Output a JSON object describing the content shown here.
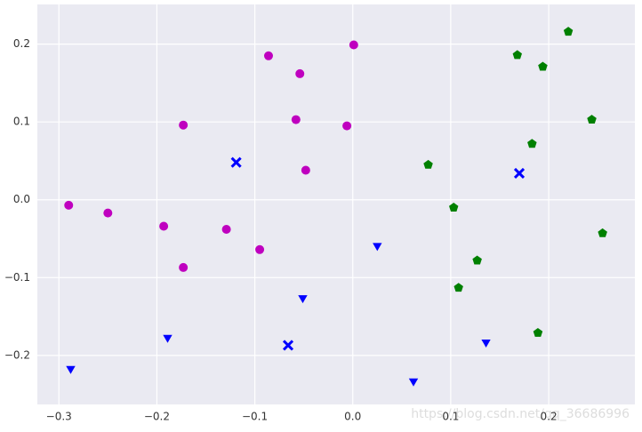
{
  "chart_data": {
    "type": "scatter",
    "xlim": [
      -0.322,
      0.288
    ],
    "ylim": [
      -0.263,
      0.251
    ],
    "xticks": [
      {
        "value": -0.3,
        "label": "−0.3"
      },
      {
        "value": -0.2,
        "label": "−0.2"
      },
      {
        "value": -0.1,
        "label": "−0.1"
      },
      {
        "value": 0,
        "label": "0.0"
      },
      0.1,
      0.2
    ],
    "yticks": [
      {
        "value": -0.2,
        "label": "−0.2"
      },
      {
        "value": -0.1,
        "label": "−0.1"
      },
      {
        "value": 0,
        "label": "0.0"
      },
      0.1,
      0.2
    ],
    "grid": true,
    "series": [
      {
        "color": "#bf00bf",
        "marker": "circle",
        "x": [
          -0.29,
          -0.25,
          -0.193,
          -0.173,
          -0.173,
          -0.129,
          -0.095,
          -0.086,
          -0.058,
          -0.054,
          -0.048,
          -0.006,
          0.001
        ],
        "values": [
          -0.007,
          -0.017,
          -0.034,
          0.096,
          -0.087,
          -0.038,
          -0.064,
          0.185,
          0.103,
          0.162,
          0.038,
          0.095,
          0.199
        ]
      },
      {
        "color": "#008000",
        "marker": "pentagon",
        "x": [
          0.077,
          0.103,
          0.127,
          0.108,
          0.168,
          0.183,
          0.194,
          0.22,
          0.244,
          0.255,
          0.189
        ],
        "values": [
          0.045,
          -0.01,
          -0.078,
          -0.113,
          0.186,
          0.072,
          0.171,
          0.216,
          0.103,
          -0.043,
          -0.171
        ]
      },
      {
        "color": "#0000ff",
        "marker": "triangle-down",
        "x": [
          -0.288,
          -0.189,
          -0.051,
          0.025,
          0.062,
          0.136
        ],
        "values": [
          -0.217,
          -0.177,
          -0.126,
          -0.059,
          -0.233,
          -0.183
        ]
      },
      {
        "color": "#0000ff",
        "marker": "x",
        "x": [
          -0.119,
          -0.066,
          0.17
        ],
        "values": [
          0.048,
          -0.187,
          0.034
        ]
      }
    ],
    "watermark": "https://blog.csdn.net/qq_36686996"
  }
}
